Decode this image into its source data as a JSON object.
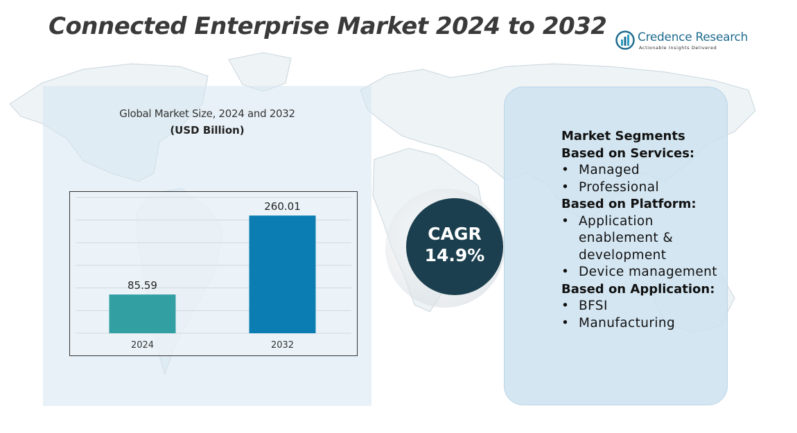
{
  "title": "Connected Enterprise Market 2024 to 2032",
  "brand": {
    "name": "Credence Research",
    "tagline": "Actionable Insights Delivered",
    "color": "#1f6b8e"
  },
  "chart_data": {
    "type": "bar",
    "subtitle": "Global Market Size, 2024 and 2032",
    "unit_label": "(USD Billion)",
    "categories": [
      "2024",
      "2032"
    ],
    "values": [
      85.59,
      260.01
    ],
    "value_labels": [
      "85.59",
      "260.01"
    ],
    "colors": [
      "#32a0a3",
      "#0b7db3"
    ],
    "xlabel": "",
    "ylabel": "",
    "ylim": [
      0,
      300
    ],
    "grid": true,
    "legend": "none"
  },
  "cagr": {
    "label": "CAGR",
    "value": "14.9%",
    "circle_color": "#1b3f4e"
  },
  "segments": {
    "title": "Market Segments",
    "groups": [
      {
        "heading": "Based on Services:",
        "items": [
          "Managed",
          "Professional"
        ]
      },
      {
        "heading": "Based on Platform:",
        "items": [
          "Application enablement & development",
          "Device management"
        ]
      },
      {
        "heading": "Based on Application:",
        "items": [
          "BFSI",
          "Manufacturing"
        ]
      }
    ]
  }
}
